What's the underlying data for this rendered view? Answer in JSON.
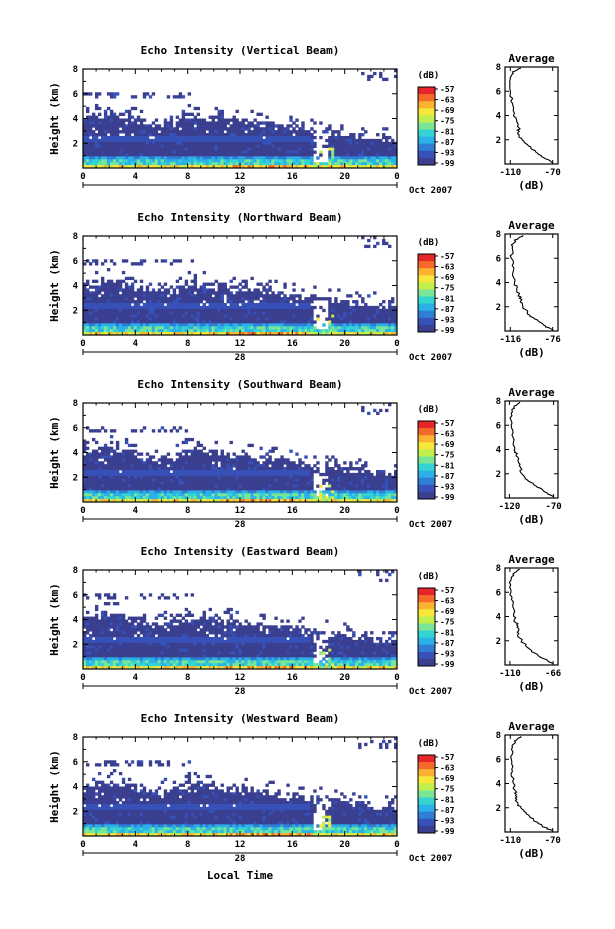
{
  "figure": {
    "xlabel_bottom": "Local Time",
    "colorbar_colors": [
      "#3a3f90",
      "#3651b8",
      "#2f7fd8",
      "#2bb0e8",
      "#33d4d2",
      "#78e694",
      "#c3ee4f",
      "#f5e83a",
      "#fbb232",
      "#f5692a",
      "#e8242b"
    ],
    "colormap_note": ""
  },
  "chart_data": [
    {
      "type": "heatmap",
      "title": "Echo Intensity (Vertical Beam)",
      "ylabel": "Height (km)",
      "yticks": [
        "2",
        "4",
        "6",
        "8"
      ],
      "ylim": [
        0,
        8
      ],
      "xticks": [
        "0",
        "4",
        "8",
        "12",
        "16",
        "20",
        "0"
      ],
      "xlim": [
        0,
        24
      ],
      "date_label": "28",
      "date_suffix": "Oct 2007",
      "colorbar": {
        "label": "(dB)",
        "ticks": [
          "-57",
          "-63",
          "-69",
          "-75",
          "-81",
          "-87",
          "-93",
          "-99"
        ]
      },
      "profile": {
        "title": "Average",
        "xlabel": "(dB)",
        "xticks": [
          "-110",
          "-70"
        ],
        "xlim": [
          -115,
          -65
        ],
        "yticks": [
          "2",
          "4",
          "6",
          "8"
        ],
        "ylim": [
          0,
          8
        ],
        "points": [
          [
            -70,
            0.1
          ],
          [
            -78,
            0.5
          ],
          [
            -86,
            1.0
          ],
          [
            -93,
            1.5
          ],
          [
            -99,
            2.0
          ],
          [
            -103,
            2.5
          ],
          [
            -102,
            3.0
          ],
          [
            -104,
            3.5
          ],
          [
            -107,
            4.0
          ],
          [
            -108,
            5.0
          ],
          [
            -110,
            6.0
          ],
          [
            -110,
            7.0
          ],
          [
            -108,
            7.6
          ],
          [
            -100,
            7.9
          ]
        ]
      }
    },
    {
      "type": "heatmap",
      "title": "Echo Intensity (Northward Beam)",
      "ylabel": "Height (km)",
      "yticks": [
        "2",
        "4",
        "6",
        "8"
      ],
      "ylim": [
        0,
        8
      ],
      "xticks": [
        "0",
        "4",
        "8",
        "12",
        "16",
        "20",
        "0"
      ],
      "xlim": [
        0,
        24
      ],
      "date_label": "28",
      "date_suffix": "Oct 2007",
      "colorbar": {
        "label": "(dB)",
        "ticks": [
          "-57",
          "-63",
          "-69",
          "-75",
          "-81",
          "-87",
          "-93",
          "-99"
        ]
      },
      "profile": {
        "title": "Average",
        "xlabel": "(dB)",
        "xticks": [
          "-116",
          "-76"
        ],
        "xlim": [
          -121,
          -71
        ],
        "yticks": [
          "2",
          "4",
          "6",
          "8"
        ],
        "ylim": [
          0,
          8
        ],
        "points": [
          [
            -76,
            0.1
          ],
          [
            -85,
            0.5
          ],
          [
            -93,
            1.0
          ],
          [
            -100,
            1.5
          ],
          [
            -104,
            2.0
          ],
          [
            -106,
            2.5
          ],
          [
            -108,
            3.0
          ],
          [
            -110,
            3.5
          ],
          [
            -112,
            4.0
          ],
          [
            -113,
            5.0
          ],
          [
            -115,
            6.0
          ],
          [
            -114,
            7.0
          ],
          [
            -112,
            7.5
          ],
          [
            -104,
            7.9
          ]
        ]
      }
    },
    {
      "type": "heatmap",
      "title": "Echo Intensity (Southward Beam)",
      "ylabel": "Height (km)",
      "yticks": [
        "2",
        "4",
        "6",
        "8"
      ],
      "ylim": [
        0,
        8
      ],
      "xticks": [
        "0",
        "4",
        "8",
        "12",
        "16",
        "20",
        "0"
      ],
      "xlim": [
        0,
        24
      ],
      "date_label": "28",
      "date_suffix": "Oct 2007",
      "colorbar": {
        "label": "(dB)",
        "ticks": [
          "-57",
          "-63",
          "-69",
          "-75",
          "-81",
          "-87",
          "-93",
          "-99"
        ]
      },
      "profile": {
        "title": "Average",
        "xlabel": "(dB)",
        "xticks": [
          "-120",
          "-70"
        ],
        "xlim": [
          -125,
          -65
        ],
        "yticks": [
          "2",
          "4",
          "6",
          "8"
        ],
        "ylim": [
          0,
          8
        ],
        "points": [
          [
            -70,
            0.1
          ],
          [
            -80,
            0.5
          ],
          [
            -90,
            1.0
          ],
          [
            -100,
            1.5
          ],
          [
            -106,
            2.0
          ],
          [
            -108,
            2.6
          ],
          [
            -110,
            3.0
          ],
          [
            -112,
            3.6
          ],
          [
            -114,
            4.0
          ],
          [
            -116,
            5.0
          ],
          [
            -118,
            6.0
          ],
          [
            -118,
            7.0
          ],
          [
            -115,
            7.5
          ],
          [
            -108,
            7.9
          ]
        ]
      }
    },
    {
      "type": "heatmap",
      "title": "Echo Intensity (Eastward Beam)",
      "ylabel": "Height (km)",
      "yticks": [
        "2",
        "4",
        "6",
        "8"
      ],
      "ylim": [
        0,
        8
      ],
      "xticks": [
        "0",
        "4",
        "8",
        "12",
        "16",
        "20",
        "0"
      ],
      "xlim": [
        0,
        24
      ],
      "date_label": "28",
      "date_suffix": "Oct 2007",
      "colorbar": {
        "label": "(dB)",
        "ticks": [
          "-57",
          "-63",
          "-69",
          "-75",
          "-81",
          "-87",
          "-93",
          "-99"
        ]
      },
      "profile": {
        "title": "Average",
        "xlabel": "(dB)",
        "xticks": [
          "-110",
          "-66"
        ],
        "xlim": [
          -115,
          -61
        ],
        "yticks": [
          "2",
          "4",
          "6",
          "8"
        ],
        "ylim": [
          0,
          8
        ],
        "points": [
          [
            -66,
            0.1
          ],
          [
            -75,
            0.5
          ],
          [
            -85,
            1.0
          ],
          [
            -93,
            1.5
          ],
          [
            -98,
            2.0
          ],
          [
            -102,
            2.5
          ],
          [
            -101,
            3.0
          ],
          [
            -104,
            3.5
          ],
          [
            -106,
            4.0
          ],
          [
            -107,
            5.0
          ],
          [
            -109,
            6.0
          ],
          [
            -109,
            7.0
          ],
          [
            -107,
            7.5
          ],
          [
            -100,
            7.9
          ]
        ]
      }
    },
    {
      "type": "heatmap",
      "title": "Echo Intensity (Westward Beam)",
      "ylabel": "Height (km)",
      "yticks": [
        "2",
        "4",
        "6",
        "8"
      ],
      "ylim": [
        0,
        8
      ],
      "xticks": [
        "0",
        "4",
        "8",
        "12",
        "16",
        "20",
        "0"
      ],
      "xlim": [
        0,
        24
      ],
      "date_label": "28",
      "date_suffix": "Oct 2007",
      "colorbar": {
        "label": "(dB)",
        "ticks": [
          "-57",
          "-63",
          "-69",
          "-75",
          "-81",
          "-87",
          "-93",
          "-99"
        ]
      },
      "profile": {
        "title": "Average",
        "xlabel": "(dB)",
        "xticks": [
          "-110",
          "-70"
        ],
        "xlim": [
          -115,
          -65
        ],
        "yticks": [
          "2",
          "4",
          "6",
          "8"
        ],
        "ylim": [
          0,
          8
        ],
        "points": [
          [
            -70,
            0.1
          ],
          [
            -80,
            0.5
          ],
          [
            -88,
            1.0
          ],
          [
            -95,
            1.5
          ],
          [
            -100,
            2.0
          ],
          [
            -104,
            2.5
          ],
          [
            -105,
            3.0
          ],
          [
            -106,
            3.5
          ],
          [
            -107,
            4.0
          ],
          [
            -108,
            5.0
          ],
          [
            -109,
            6.0
          ],
          [
            -108,
            7.0
          ],
          [
            -106,
            7.5
          ],
          [
            -100,
            7.9
          ]
        ]
      }
    }
  ]
}
